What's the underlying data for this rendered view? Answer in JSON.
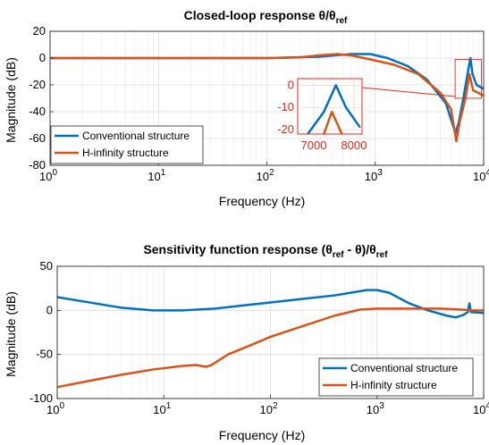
{
  "chart_data": [
    {
      "type": "line",
      "title": "Closed-loop response θ/θ",
      "title_sub": "ref",
      "xlabel": "Frequency (Hz)",
      "ylabel": "Magnitude (dB)",
      "xscale": "log",
      "xlim": [
        1,
        10000
      ],
      "ylim": [
        -80,
        20
      ],
      "xticks": [
        1,
        10,
        100,
        1000,
        10000
      ],
      "xtick_labels": [
        "10^0",
        "10^1",
        "10^2",
        "10^3",
        "10^4"
      ],
      "yticks": [
        -80,
        -60,
        -40,
        -20,
        0,
        20
      ],
      "ytick_labels": [
        "-80",
        "-60",
        "-40",
        "-20",
        "0",
        "20"
      ],
      "grid": true,
      "legend": "bottom-left",
      "series": [
        {
          "name": "Conventional structure",
          "color": "#0072bd",
          "points": [
            [
              1,
              0
            ],
            [
              10,
              0
            ],
            [
              100,
              0
            ],
            [
              300,
              1
            ],
            [
              600,
              3
            ],
            [
              900,
              3
            ],
            [
              1300,
              0
            ],
            [
              2000,
              -6
            ],
            [
              3000,
              -16
            ],
            [
              4500,
              -34
            ],
            [
              5500,
              -56
            ],
            [
              5900,
              -48
            ],
            [
              6500,
              -30
            ],
            [
              7100,
              -12
            ],
            [
              7550,
              0
            ],
            [
              7900,
              -12
            ],
            [
              8600,
              -20
            ],
            [
              10000,
              -23
            ]
          ]
        },
        {
          "name": "H-infinity structure",
          "color": "#d95319",
          "points": [
            [
              1,
              0
            ],
            [
              10,
              0
            ],
            [
              100,
              0
            ],
            [
              200,
              0.5
            ],
            [
              300,
              2
            ],
            [
              450,
              3
            ],
            [
              600,
              2
            ],
            [
              900,
              -1
            ],
            [
              1500,
              -5
            ],
            [
              2500,
              -12
            ],
            [
              4000,
              -26
            ],
            [
              5000,
              -38
            ],
            [
              5600,
              -62
            ],
            [
              6000,
              -48
            ],
            [
              6800,
              -30
            ],
            [
              7400,
              -12
            ],
            [
              8000,
              -24
            ],
            [
              10000,
              -28
            ]
          ]
        }
      ],
      "inset": {
        "xlim": [
          6600,
          8200
        ],
        "ylim": [
          -22,
          3
        ],
        "xticks": [
          7000,
          8000
        ],
        "xtick_labels": [
          "7000",
          "8000"
        ],
        "yticks": [
          0,
          -10,
          -20
        ],
        "ytick_labels": [
          "0",
          "-10",
          "-20"
        ],
        "zoom_region": {
          "x": [
            6600,
            8200
          ],
          "y": [
            -22,
            3
          ]
        },
        "color": "#e8251d"
      }
    },
    {
      "type": "line",
      "title": "Sensitivity function response (θ",
      "title_sub1": "ref",
      "title_mid": " - θ)/θ",
      "title_sub2": "ref",
      "xlabel": "Frequency (Hz)",
      "ylabel": "Magnitude (dB)",
      "xscale": "log",
      "xlim": [
        1,
        10000
      ],
      "ylim": [
        -100,
        50
      ],
      "xticks": [
        1,
        10,
        100,
        1000,
        10000
      ],
      "xtick_labels": [
        "10^0",
        "10^1",
        "10^2",
        "10^3",
        "10^4"
      ],
      "yticks": [
        -100,
        -50,
        0,
        50
      ],
      "ytick_labels": [
        "-100",
        "-50",
        "0",
        "50"
      ],
      "grid": true,
      "legend": "bottom-right",
      "series": [
        {
          "name": "Conventional structure",
          "color": "#0072bd",
          "points": [
            [
              1,
              15
            ],
            [
              2,
              9
            ],
            [
              4,
              3
            ],
            [
              8,
              0
            ],
            [
              15,
              0
            ],
            [
              30,
              2
            ],
            [
              60,
              6
            ],
            [
              100,
              9
            ],
            [
              200,
              13
            ],
            [
              400,
              17
            ],
            [
              800,
              23
            ],
            [
              1000,
              23
            ],
            [
              1300,
              20
            ],
            [
              2000,
              8
            ],
            [
              3000,
              0
            ],
            [
              4500,
              -6
            ],
            [
              5500,
              -8
            ],
            [
              6500,
              -5
            ],
            [
              7100,
              -2
            ],
            [
              7350,
              8
            ],
            [
              7600,
              -2
            ],
            [
              10000,
              -3
            ]
          ]
        },
        {
          "name": "H-infinity structure",
          "color": "#d95319",
          "points": [
            [
              1,
              -87
            ],
            [
              2,
              -80
            ],
            [
              4,
              -73
            ],
            [
              8,
              -67
            ],
            [
              15,
              -63
            ],
            [
              20,
              -62
            ],
            [
              25,
              -64
            ],
            [
              28,
              -62
            ],
            [
              40,
              -50
            ],
            [
              70,
              -38
            ],
            [
              100,
              -30
            ],
            [
              200,
              -18
            ],
            [
              400,
              -6
            ],
            [
              700,
              1
            ],
            [
              1000,
              2
            ],
            [
              2000,
              2
            ],
            [
              4000,
              2
            ],
            [
              6000,
              1
            ],
            [
              8000,
              0
            ],
            [
              10000,
              0
            ]
          ]
        }
      ]
    }
  ]
}
